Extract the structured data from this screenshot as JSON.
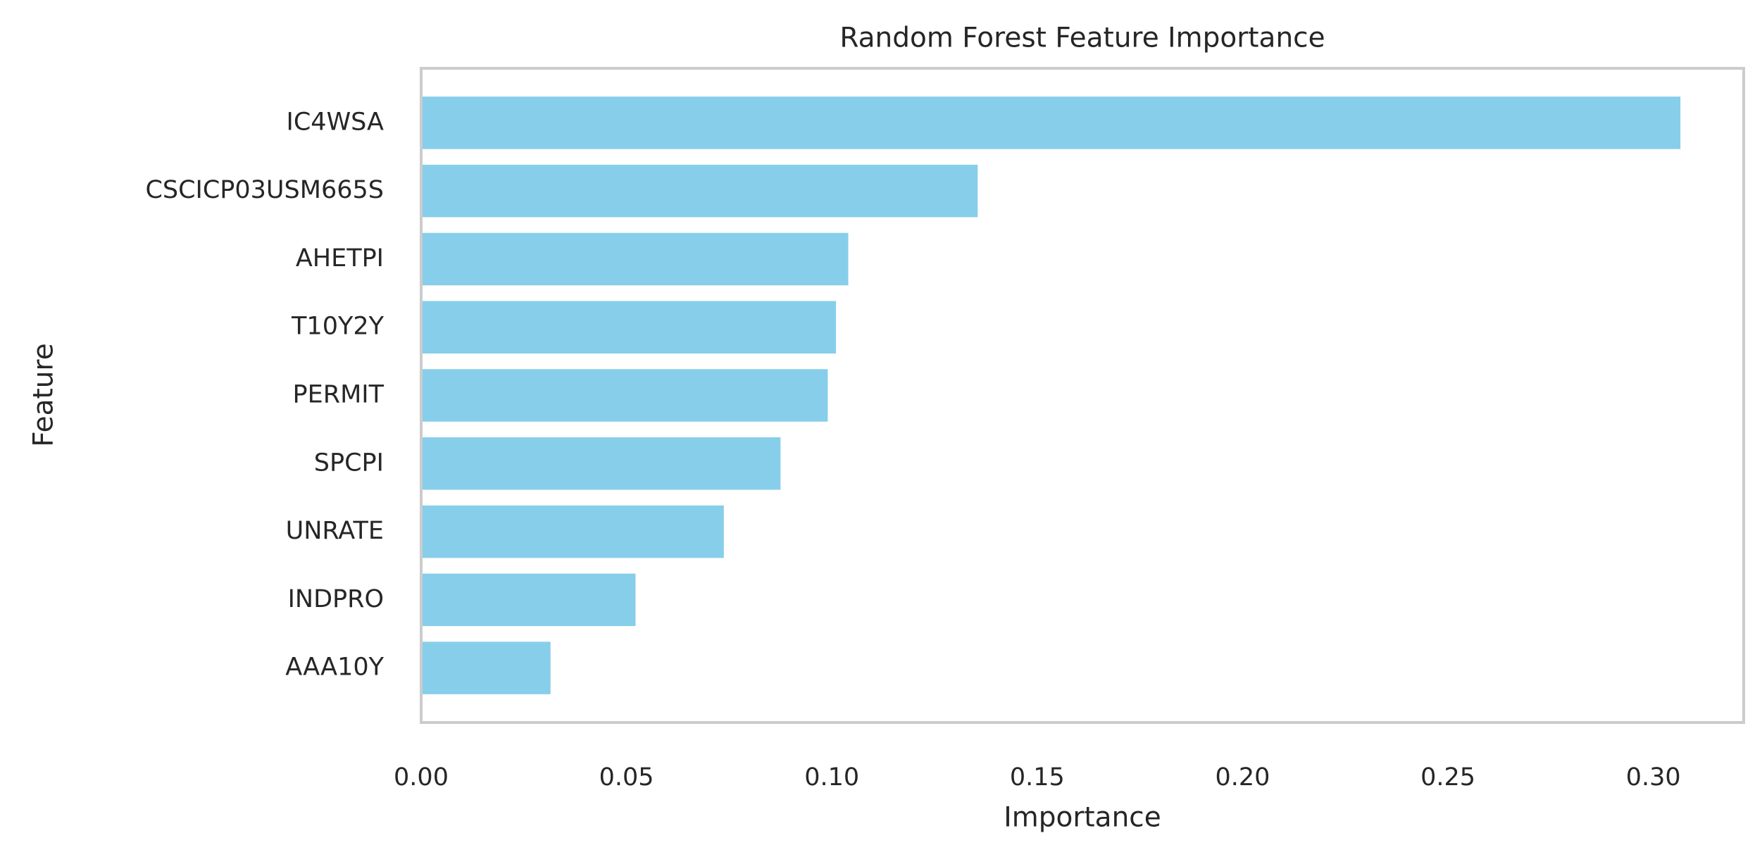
{
  "chart_data": {
    "type": "barh",
    "title": "Random Forest Feature Importance",
    "x_label": "Importance",
    "y_label": "Feature",
    "categories": [
      "IC4WSA",
      "CSCICP03USM665S",
      "AHETPI",
      "T10Y2Y",
      "PERMIT",
      "SPCPI",
      "UNRATE",
      "INDPRO",
      "AAA10Y"
    ],
    "values": [
      0.3066,
      0.1355,
      0.104,
      0.101,
      0.099,
      0.0875,
      0.0737,
      0.0522,
      0.0315
    ],
    "color": "#87ceeb",
    "xlim": [
      0,
      0.322
    ],
    "xticks": [
      {
        "value": 0,
        "label": "0.00"
      },
      {
        "value": 0.05,
        "label": "0.05"
      },
      {
        "value": 0.1,
        "label": "0.10"
      },
      {
        "value": 0.15,
        "label": "0.15"
      },
      {
        "value": 0.2,
        "label": "0.20"
      },
      {
        "value": 0.25,
        "label": "0.25"
      },
      {
        "value": 0.3,
        "label": "0.30"
      }
    ],
    "grid": false
  }
}
